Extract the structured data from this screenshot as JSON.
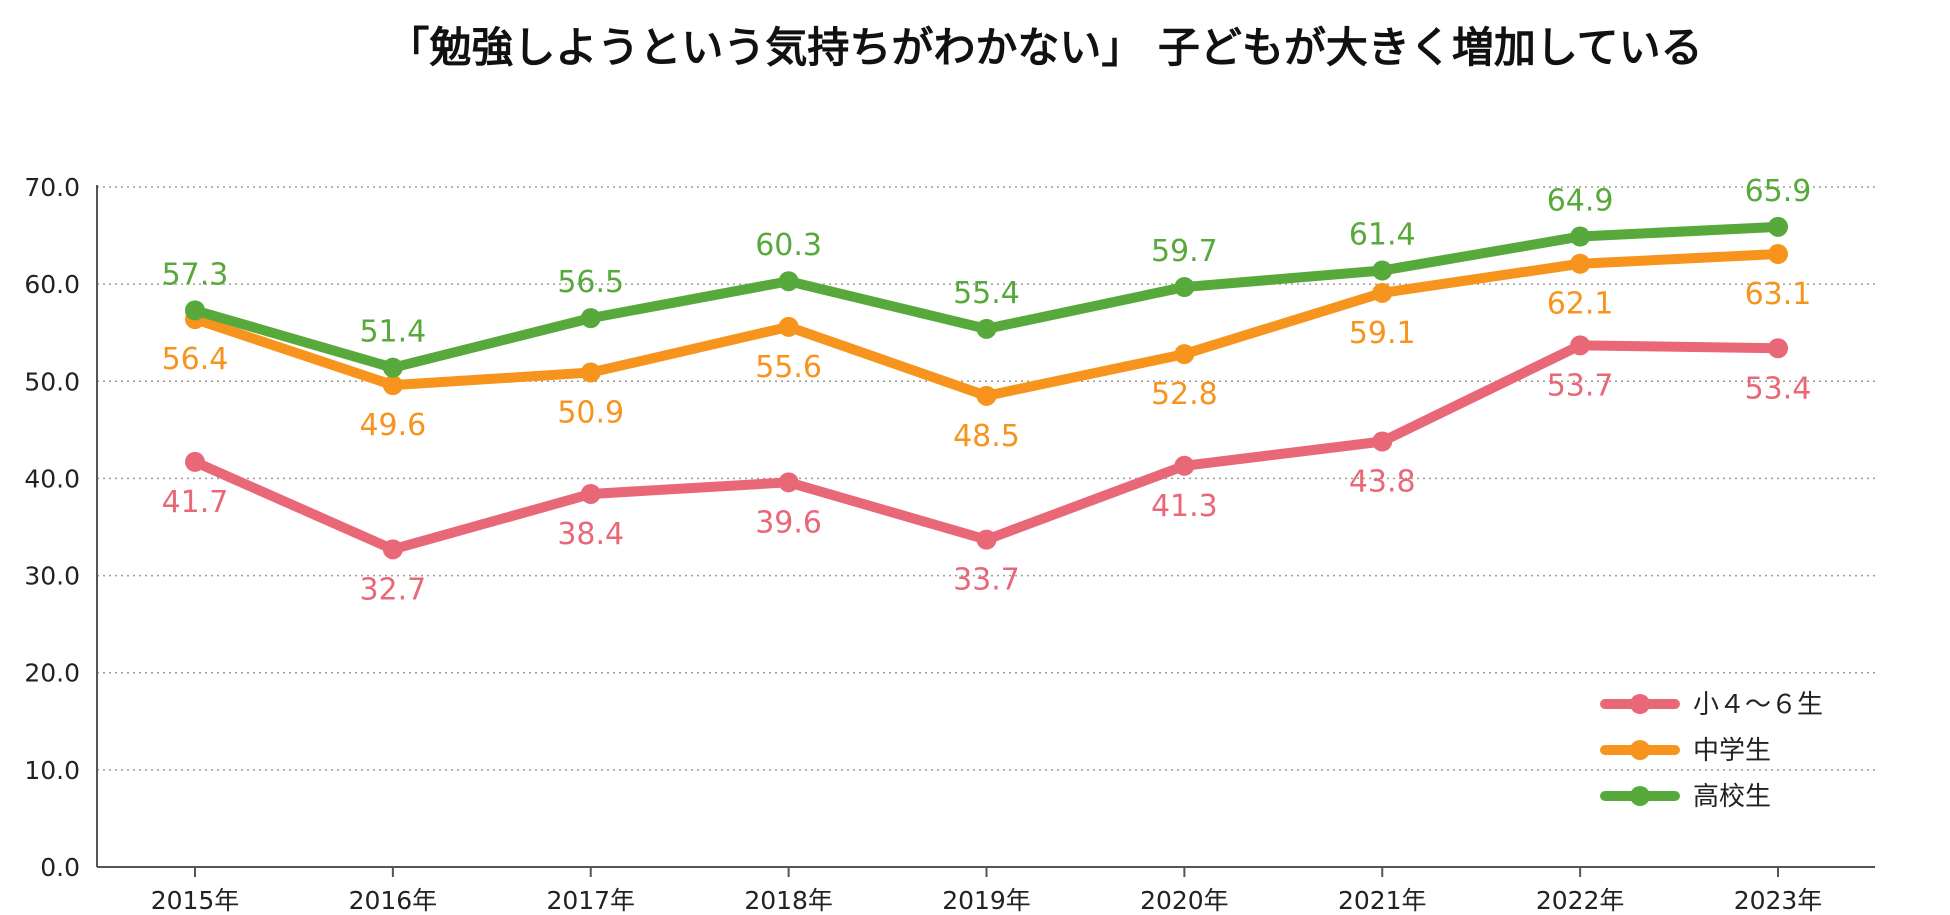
{
  "chart_data": {
    "type": "line",
    "title": "「勉強しようという気持ちがわかない」 子どもが大きく増加している",
    "xlabel": "",
    "ylabel": "",
    "ylim": [
      0,
      70
    ],
    "yticks": [
      0,
      10,
      20,
      30,
      40,
      50,
      60,
      70
    ],
    "ytick_labels": [
      "0.0",
      "10.0",
      "20.0",
      "30.0",
      "40.0",
      "50.0",
      "60.0",
      "70.0"
    ],
    "grid": "horizontal dotted",
    "legend_position": "bottom-right",
    "categories": [
      "2015年",
      "2016年",
      "2017年",
      "2018年",
      "2019年",
      "2020年",
      "2021年",
      "2022年",
      "2023年"
    ],
    "series": [
      {
        "name": "小４～６生",
        "color": "#e96878",
        "values": [
          41.7,
          32.7,
          38.4,
          39.6,
          33.7,
          41.3,
          43.8,
          53.7,
          53.4
        ],
        "labels": [
          "41.7",
          "32.7",
          "38.4",
          "39.6",
          "33.7",
          "41.3",
          "43.8",
          "53.7",
          "53.4"
        ],
        "label_position": "below"
      },
      {
        "name": "中学生",
        "color": "#f7941d",
        "values": [
          56.4,
          49.6,
          50.9,
          55.6,
          48.5,
          52.8,
          59.1,
          62.1,
          63.1
        ],
        "labels": [
          "56.4",
          "49.6",
          "50.9",
          "55.6",
          "48.5",
          "52.8",
          "59.1",
          "62.1",
          "63.1"
        ],
        "label_position": "below"
      },
      {
        "name": "高校生",
        "color": "#58a93c",
        "values": [
          57.3,
          51.4,
          56.5,
          60.3,
          55.4,
          59.7,
          61.4,
          64.9,
          65.9
        ],
        "labels": [
          "57.3",
          "51.4",
          "56.5",
          "60.3",
          "55.4",
          "59.7",
          "61.4",
          "64.9",
          "65.9"
        ],
        "label_position": "above"
      }
    ]
  }
}
